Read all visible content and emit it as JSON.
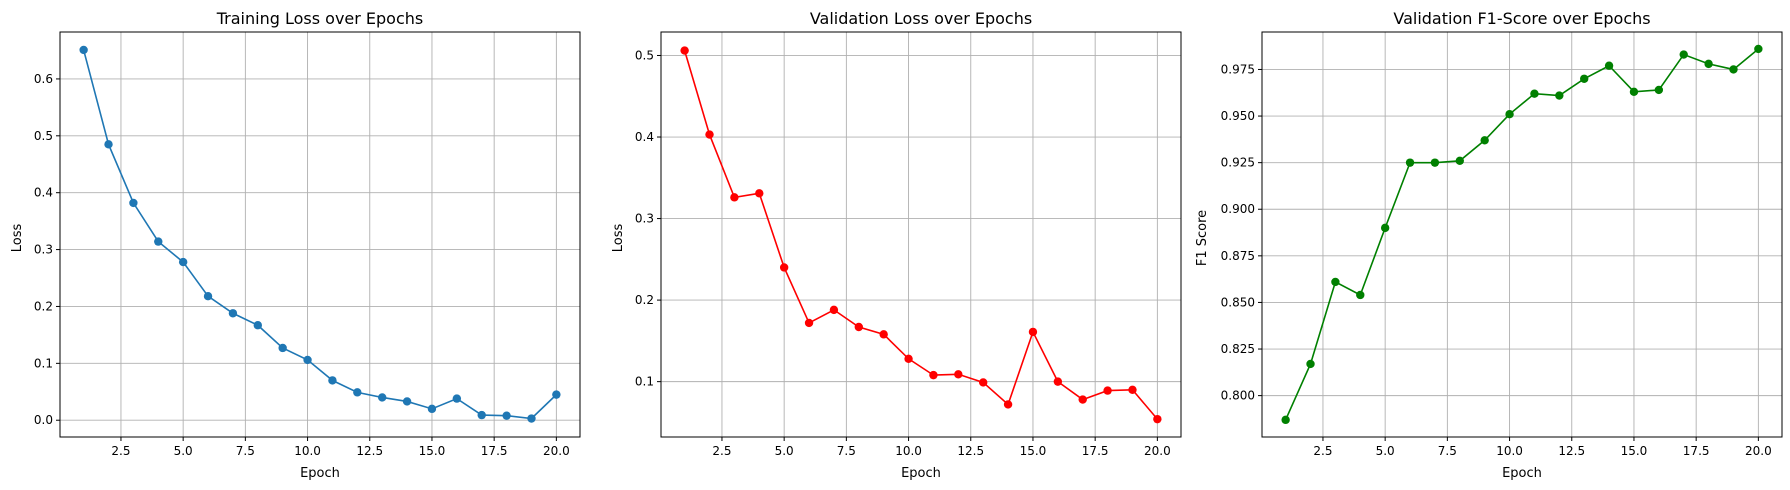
{
  "chart_data": [
    {
      "type": "line",
      "title": "Training Loss over Epochs",
      "xlabel": "Epoch",
      "ylabel": "Loss",
      "color": "#1f77b4",
      "grid": true,
      "xlim": [
        0.05,
        20.95
      ],
      "ylim": [
        -0.0295,
        0.6825
      ],
      "xticks": [
        2.5,
        5.0,
        7.5,
        10.0,
        12.5,
        15.0,
        17.5,
        20.0
      ],
      "xtick_labels": [
        "2.5",
        "5.0",
        "7.5",
        "10.0",
        "12.5",
        "15.0",
        "17.5",
        "20.0"
      ],
      "yticks": [
        0.0,
        0.1,
        0.2,
        0.3,
        0.4,
        0.5,
        0.6
      ],
      "ytick_labels": [
        "0.0",
        "0.1",
        "0.2",
        "0.3",
        "0.4",
        "0.5",
        "0.6"
      ],
      "series": [
        {
          "name": "Training Loss",
          "x": [
            1,
            2,
            3,
            4,
            5,
            6,
            7,
            8,
            9,
            10,
            11,
            12,
            13,
            14,
            15,
            16,
            17,
            18,
            19,
            20
          ],
          "values": [
            0.651,
            0.485,
            0.382,
            0.314,
            0.278,
            0.218,
            0.188,
            0.167,
            0.127,
            0.106,
            0.07,
            0.049,
            0.04,
            0.033,
            0.02,
            0.038,
            0.009,
            0.008,
            0.003,
            0.045
          ]
        }
      ]
    },
    {
      "type": "line",
      "title": "Validation Loss over Epochs",
      "xlabel": "Epoch",
      "ylabel": "Loss",
      "color": "#ff0000",
      "grid": true,
      "xlim": [
        0.05,
        20.95
      ],
      "ylim": [
        0.0321,
        0.5288
      ],
      "xticks": [
        2.5,
        5.0,
        7.5,
        10.0,
        12.5,
        15.0,
        17.5,
        20.0
      ],
      "xtick_labels": [
        "2.5",
        "5.0",
        "7.5",
        "10.0",
        "12.5",
        "15.0",
        "17.5",
        "20.0"
      ],
      "yticks": [
        0.1,
        0.2,
        0.3,
        0.4,
        0.5
      ],
      "ytick_labels": [
        "0.1",
        "0.2",
        "0.3",
        "0.4",
        "0.5"
      ],
      "series": [
        {
          "name": "Validation Loss",
          "x": [
            1,
            2,
            3,
            4,
            5,
            6,
            7,
            8,
            9,
            10,
            11,
            12,
            13,
            14,
            15,
            16,
            17,
            18,
            19,
            20
          ],
          "values": [
            0.506,
            0.403,
            0.326,
            0.331,
            0.24,
            0.172,
            0.188,
            0.167,
            0.158,
            0.128,
            0.108,
            0.109,
            0.099,
            0.072,
            0.161,
            0.1,
            0.078,
            0.089,
            0.09,
            0.054
          ]
        }
      ]
    },
    {
      "type": "line",
      "title": "Validation F1-Score over Epochs",
      "xlabel": "Epoch",
      "ylabel": "F1 Score",
      "color": "#008000",
      "grid": true,
      "xlim": [
        0.05,
        20.95
      ],
      "ylim": [
        0.7778,
        0.9951
      ],
      "xticks": [
        2.5,
        5.0,
        7.5,
        10.0,
        12.5,
        15.0,
        17.5,
        20.0
      ],
      "xtick_labels": [
        "2.5",
        "5.0",
        "7.5",
        "10.0",
        "12.5",
        "15.0",
        "17.5",
        "20.0"
      ],
      "yticks": [
        0.8,
        0.825,
        0.85,
        0.875,
        0.9,
        0.925,
        0.95,
        0.975
      ],
      "ytick_labels": [
        "0.800",
        "0.825",
        "0.850",
        "0.875",
        "0.900",
        "0.925",
        "0.950",
        "0.975"
      ],
      "series": [
        {
          "name": "Validation F1-Score",
          "x": [
            1,
            2,
            3,
            4,
            5,
            6,
            7,
            8,
            9,
            10,
            11,
            12,
            13,
            14,
            15,
            16,
            17,
            18,
            19,
            20
          ],
          "values": [
            0.787,
            0.817,
            0.861,
            0.854,
            0.89,
            0.925,
            0.925,
            0.926,
            0.937,
            0.951,
            0.962,
            0.961,
            0.97,
            0.977,
            0.963,
            0.964,
            0.983,
            0.978,
            0.975,
            0.986
          ]
        }
      ]
    }
  ]
}
